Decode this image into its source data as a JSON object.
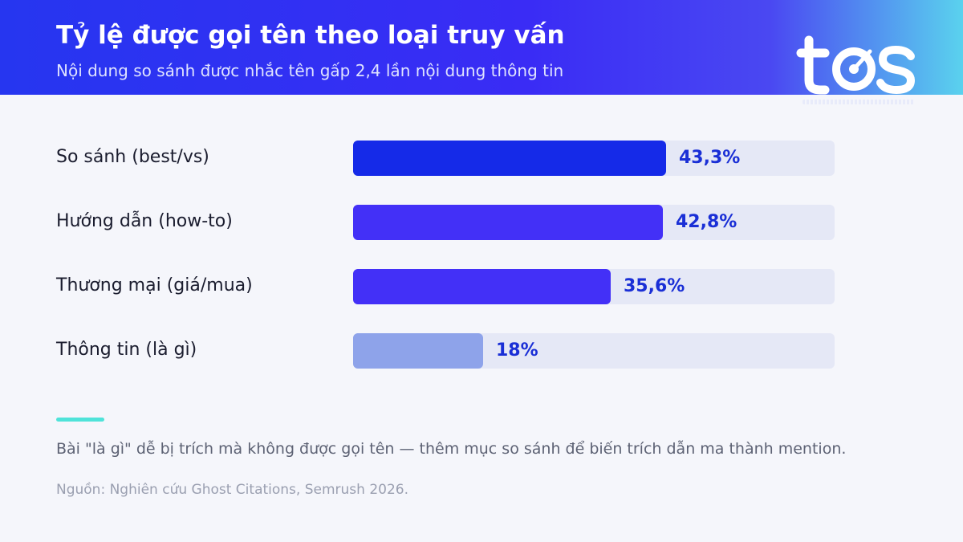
{
  "header": {
    "title": "Tỷ lệ được gọi tên theo loại truy vấn",
    "subtitle": "Nội dung so sánh được nhắc tên gấp 2,4 lần nội dung thông tin"
  },
  "logo": {
    "text": "tos",
    "icon": "tos-logo"
  },
  "chart_data": {
    "type": "bar",
    "orientation": "horizontal",
    "categories": [
      "So sánh (best/vs)",
      "Hướng dẫn (how-to)",
      "Thương mại (giá/mua)",
      "Thông tin (là gì)"
    ],
    "values": [
      43.3,
      42.8,
      35.6,
      18
    ],
    "value_labels": [
      "43,3%",
      "42,8%",
      "35,6%",
      "18%"
    ],
    "colors": [
      "#152ae8",
      "#4330f7",
      "#4330f7",
      "#8ea3ea"
    ],
    "unit": "%",
    "xlim": [
      0,
      66.6
    ],
    "grid": false
  },
  "footer": {
    "note": "Bài \"là gì\" dễ bị trích mà không được gọi tên — thêm mục so sánh để biến trích dẫn ma thành mention.",
    "source": "Nguồn: Nghiên cứu Ghost Citations, Semrush 2026."
  },
  "colors": {
    "accent": "#4fe3d9",
    "value_text": "#1a2fd6",
    "track": "#e5e8f6"
  }
}
